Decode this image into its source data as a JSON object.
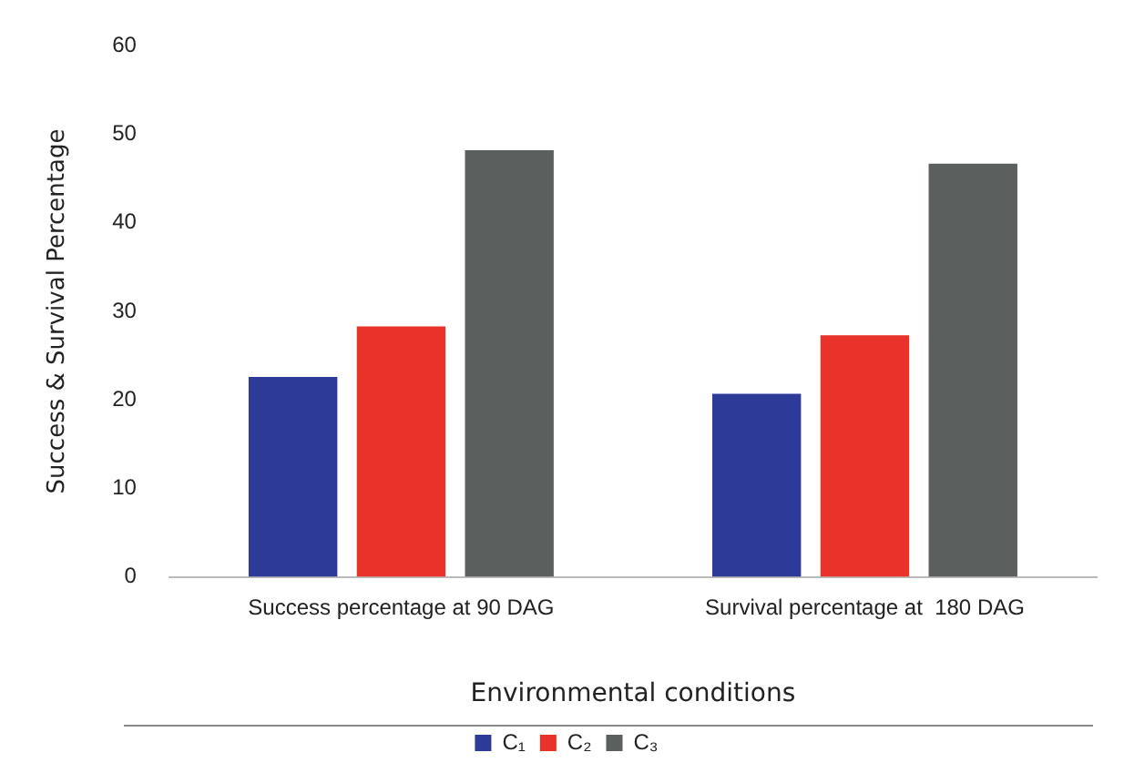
{
  "chart_data": {
    "type": "bar",
    "xlabel": "Environmental conditions",
    "ylabel": "Success & Survival Percentage",
    "categories": [
      "Success percentage at 90 DAG",
      "Survival percentage at  180 DAG"
    ],
    "series": [
      {
        "name": "C₁",
        "color": "#2e3a97",
        "values": [
          22.6,
          20.7
        ]
      },
      {
        "name": "C₂",
        "color": "#e8322a",
        "values": [
          28.3,
          27.3
        ]
      },
      {
        "name": "C₃",
        "color": "#5b5f5e",
        "values": [
          48.2,
          46.7
        ]
      }
    ],
    "ylim": [
      0,
      60
    ],
    "yticks": [
      0,
      10,
      20,
      30,
      40,
      50,
      60
    ],
    "grid": false,
    "legend": "bottom"
  }
}
